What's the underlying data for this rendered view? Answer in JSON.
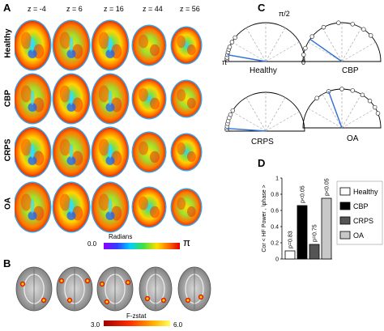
{
  "panels": {
    "a": {
      "label": "A",
      "z_labels": [
        "z = -4",
        "z = 6",
        "z = 16",
        "z = 44",
        "z = 56"
      ],
      "rows": [
        "Healthy",
        "CBP",
        "CRPS",
        "OA"
      ],
      "colorbar": {
        "title": "Radians",
        "min": "0.0",
        "max": "π"
      }
    },
    "b": {
      "label": "B",
      "colorbar": {
        "title": "F-zstat",
        "min": "3.0",
        "max": "6.0"
      }
    },
    "c": {
      "label": "C",
      "top_label": "π/2",
      "left_label": "π",
      "right_label": "0",
      "polar_titles": [
        "Healthy",
        "CBP",
        "CRPS",
        "OA"
      ]
    },
    "d": {
      "label": "D"
    }
  },
  "chart_data": {
    "type": "bar",
    "categories": [
      "Healthy",
      "CBP",
      "CRPS",
      "OA"
    ],
    "values": [
      0.1,
      0.66,
      0.18,
      0.75
    ],
    "bar_labels": [
      "p=0.83",
      "p<0.05",
      "p=0.75",
      "p<0.05"
    ],
    "ylabel": "Cor < HF Power , \\phase >",
    "ylim": [
      0,
      1
    ],
    "yticks": [
      "0",
      "0.2",
      "0.4",
      "0.6",
      "0.8",
      "1"
    ],
    "legend": [
      "Healthy",
      "CBP",
      "CRPS",
      "OA"
    ],
    "colors": [
      "#ffffff",
      "#000000",
      "#555555",
      "#c8c8c8"
    ]
  }
}
